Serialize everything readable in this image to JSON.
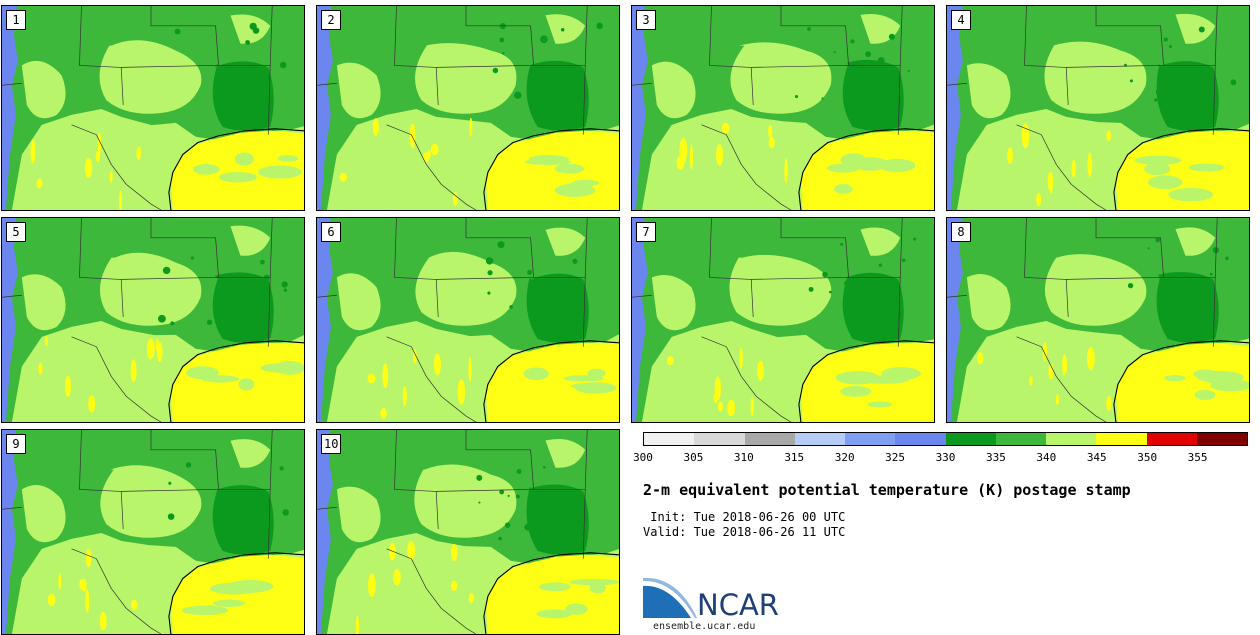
{
  "panels": [
    {
      "label": "1"
    },
    {
      "label": "2"
    },
    {
      "label": "3"
    },
    {
      "label": "4"
    },
    {
      "label": "5"
    },
    {
      "label": "6"
    },
    {
      "label": "7"
    },
    {
      "label": "8"
    },
    {
      "label": "9"
    },
    {
      "label": "10"
    }
  ],
  "colorbar": {
    "colors": [
      "#f0f0f0",
      "#d8d8d8",
      "#a8a8a8",
      "#b4ccf6",
      "#7f9ef4",
      "#6b86ee",
      "#0c9a1e",
      "#3db83a",
      "#b8f56a",
      "#ffff16",
      "#e00000",
      "#800000"
    ],
    "ticks": [
      "300",
      "305",
      "310",
      "315",
      "320",
      "325",
      "330",
      "335",
      "340",
      "345",
      "350",
      "355"
    ]
  },
  "title": "2-m equivalent potential temperature (K) postage stamp",
  "init": " Init: Tue 2018-06-26 00 UTC",
  "valid": "Valid: Tue 2018-06-26 11 UTC",
  "logo": {
    "text": "NCAR",
    "url": "ensemble.ucar.edu",
    "color": "#1e3f78"
  }
}
